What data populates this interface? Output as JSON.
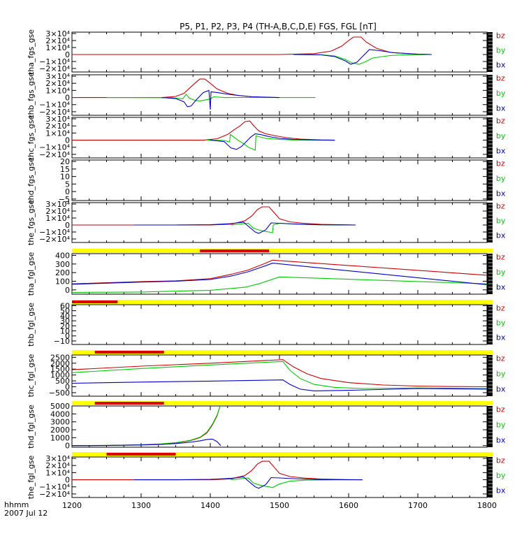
{
  "title": "P5, P1, P2, P3, P4 (TH-A,B,C,D,E) FGS, FGL [nT]",
  "colors": {
    "bz": "#cc0000",
    "by": "#00cc00",
    "bx": "#0000cc",
    "bar_bg": "#ffff00",
    "bar_fill": "#dd0000"
  },
  "time_axis": {
    "label_line1": "hhmm",
    "label_line2": "2007 Jul 12",
    "xlim": [
      1200,
      1800
    ],
    "ticks": [
      "1200",
      "1300",
      "1400",
      "1500",
      "1600",
      "1700",
      "1800"
    ]
  },
  "chart_data": [
    {
      "id": "tha_fgs_gse",
      "type": "line",
      "ylabel": "tha_fgs_gse",
      "ylim": [
        -25000,
        32000
      ],
      "yticks": [
        {
          "v": 30000,
          "t": "3×10⁴"
        },
        {
          "v": 20000,
          "t": "2×10⁴"
        },
        {
          "v": 10000,
          "t": "1×10⁴"
        },
        {
          "v": 0,
          "t": "0"
        },
        {
          "v": -10000,
          "t": "−1×10⁴"
        },
        {
          "v": -20000,
          "t": "−2×10⁴"
        }
      ],
      "series": [
        {
          "name": "bz",
          "x": [
            1200,
            1500,
            1550,
            1575,
            1590,
            1600,
            1607,
            1618,
            1625,
            1640,
            1660,
            1700,
            1720
          ],
          "y": [
            0,
            0,
            1200,
            5000,
            12000,
            20000,
            25000,
            25000,
            18000,
            9000,
            3000,
            400,
            0
          ]
        },
        {
          "name": "by",
          "x": [
            1520,
            1560,
            1580,
            1595,
            1605,
            1615,
            1625,
            1635,
            1645,
            1660,
            1680,
            1720
          ],
          "y": [
            0,
            -300,
            -2000,
            -7000,
            -12000,
            -14000,
            -10000,
            -5000,
            -3500,
            -1500,
            -400,
            0
          ]
        },
        {
          "name": "bx",
          "x": [
            1520,
            1560,
            1580,
            1595,
            1603,
            1612,
            1620,
            1630,
            1645,
            1665,
            1700,
            1720
          ],
          "y": [
            0,
            -500,
            -3000,
            -9000,
            -14000,
            -11000,
            -3000,
            7000,
            5500,
            2500,
            500,
            0
          ]
        }
      ]
    },
    {
      "id": "thb_fgs_gse",
      "type": "line",
      "ylabel": "thb_fgs_gse",
      "ylim": [
        -25000,
        32000
      ],
      "yticks": [
        {
          "v": 30000,
          "t": "3×10⁴"
        },
        {
          "v": 20000,
          "t": "2×10⁴"
        },
        {
          "v": 10000,
          "t": "1×10⁴"
        },
        {
          "v": 0,
          "t": "0"
        },
        {
          "v": -10000,
          "t": "−1×10⁴"
        },
        {
          "v": -20000,
          "t": "−2×10⁴"
        }
      ],
      "series": [
        {
          "name": "bz",
          "x": [
            1200,
            1330,
            1350,
            1362,
            1372,
            1380,
            1385,
            1392,
            1400,
            1410,
            1425,
            1440,
            1460,
            1480,
            1500
          ],
          "y": [
            0,
            0,
            1500,
            6000,
            15000,
            22000,
            26000,
            26000,
            20000,
            12000,
            6000,
            3000,
            1000,
            300,
            0
          ]
        },
        {
          "name": "by",
          "x": [
            1250,
            1345,
            1360,
            1365,
            1370,
            1378,
            1385,
            1395,
            1400,
            1405,
            1420,
            1450,
            1552
          ],
          "y": [
            0,
            -200,
            -2000,
            4500,
            -1000,
            -4000,
            -5000,
            -3000,
            -2000,
            1000,
            0,
            100,
            0
          ]
        },
        {
          "name": "bx",
          "x": [
            1330,
            1350,
            1362,
            1367,
            1372,
            1380,
            1390,
            1398,
            1400,
            1401,
            1410,
            1430,
            1460,
            1500
          ],
          "y": [
            0,
            -1500,
            -6000,
            -13000,
            -12000,
            -3000,
            7000,
            10000,
            -17000,
            8000,
            7000,
            4000,
            1000,
            0
          ]
        }
      ]
    },
    {
      "id": "thc_fgs_gse",
      "type": "line",
      "ylabel": "thc_fgs_gse",
      "ylim": [
        -25000,
        32000
      ],
      "yticks": [
        {
          "v": 30000,
          "t": "3×10⁴"
        },
        {
          "v": 20000,
          "t": "2×10⁴"
        },
        {
          "v": 10000,
          "t": "1×10⁴"
        },
        {
          "v": 0,
          "t": "0"
        },
        {
          "v": -10000,
          "t": "−1×10⁴"
        },
        {
          "v": -20000,
          "t": "−2×10⁴"
        }
      ],
      "series": [
        {
          "name": "bz",
          "x": [
            1200,
            1390,
            1410,
            1425,
            1435,
            1443,
            1450,
            1457,
            1463,
            1470,
            1480,
            1495,
            1510,
            1530,
            1560,
            1580
          ],
          "y": [
            0,
            0,
            2000,
            8000,
            15000,
            20000,
            26000,
            27000,
            20000,
            13000,
            9000,
            6000,
            3500,
            1500,
            300,
            0
          ]
        },
        {
          "name": "by",
          "x": [
            1395,
            1420,
            1428,
            1429,
            1440,
            1450,
            1455,
            1460,
            1465,
            1466,
            1470,
            1480,
            1500,
            1520,
            1560,
            1580
          ],
          "y": [
            0,
            -500,
            -2500,
            8000,
            0,
            -6000,
            -10000,
            -12000,
            -14000,
            6000,
            5000,
            2500,
            1000,
            300,
            0,
            0
          ]
        },
        {
          "name": "bx",
          "x": [
            1400,
            1420,
            1430,
            1438,
            1445,
            1452,
            1458,
            1465,
            1472,
            1485,
            1500,
            1520,
            1560,
            1580
          ],
          "y": [
            0,
            -2000,
            -11000,
            -13000,
            -9000,
            -2000,
            4000,
            9000,
            8000,
            5000,
            2500,
            1000,
            200,
            0
          ]
        }
      ]
    },
    {
      "id": "thd_fgs_gse",
      "type": "line",
      "ylabel": "thd_fgs_gse",
      "ylim": [
        -6,
        21
      ],
      "yticks": [
        {
          "v": 20,
          "t": "20"
        },
        {
          "v": 15,
          "t": "15"
        },
        {
          "v": 10,
          "t": "10"
        },
        {
          "v": 5,
          "t": "5"
        },
        {
          "v": 0,
          "t": "0"
        },
        {
          "v": -5,
          "t": "−5"
        }
      ],
      "series": []
    },
    {
      "id": "the_fgs_gse",
      "type": "line",
      "ylabel": "the_fgs_gse",
      "ylim": [
        -25000,
        32000
      ],
      "yticks": [
        {
          "v": 30000,
          "t": "3×10⁴"
        },
        {
          "v": 20000,
          "t": "2×10⁴"
        },
        {
          "v": 10000,
          "t": "1×10⁴"
        },
        {
          "v": 0,
          "t": "0"
        },
        {
          "v": -10000,
          "t": "−1×10⁴"
        },
        {
          "v": -20000,
          "t": "−2×10⁴"
        }
      ],
      "series": [
        {
          "name": "bz",
          "x": [
            1200,
            1400,
            1430,
            1450,
            1460,
            1468,
            1475,
            1485,
            1492,
            1500,
            1515,
            1535,
            1560,
            1600,
            1610
          ],
          "y": [
            0,
            0,
            1200,
            6000,
            13000,
            22000,
            26000,
            26000,
            18000,
            9000,
            4500,
            2500,
            1000,
            200,
            0
          ]
        },
        {
          "name": "by",
          "x": [
            1430,
            1455,
            1462,
            1470,
            1478,
            1485,
            1490,
            1491,
            1500,
            1515,
            1540,
            1580,
            1610
          ],
          "y": [
            0,
            2500,
            -4500,
            -7000,
            -9000,
            -10000,
            -11000,
            0,
            2500,
            1500,
            500,
            100,
            0
          ]
        },
        {
          "name": "bx",
          "x": [
            1290,
            1350,
            1400,
            1430,
            1448,
            1460,
            1465,
            1470,
            1480,
            1488,
            1500,
            1520,
            1560,
            1610
          ],
          "y": [
            0,
            0,
            500,
            2000,
            4000,
            -6000,
            -10000,
            -12000,
            -7000,
            3000,
            2500,
            1500,
            300,
            0
          ]
        }
      ]
    },
    {
      "id": "tha_fgl_gse",
      "type": "line",
      "ylabel": "tha_fgl_gse",
      "ylim": [
        -50,
        420
      ],
      "yticks": [
        {
          "v": 400,
          "t": "400"
        },
        {
          "v": 300,
          "t": "300"
        },
        {
          "v": 200,
          "t": "200"
        },
        {
          "v": 100,
          "t": "100"
        },
        {
          "v": 0,
          "t": "0"
        }
      ],
      "series": [
        {
          "name": "bz",
          "x": [
            1200,
            1300,
            1350,
            1400,
            1430,
            1455,
            1480,
            1490,
            1800
          ],
          "y": [
            70,
            95,
            105,
            130,
            180,
            230,
            310,
            345,
            170
          ]
        },
        {
          "name": "by",
          "x": [
            1200,
            1300,
            1400,
            1450,
            1470,
            1485,
            1500,
            1800
          ],
          "y": [
            -30,
            -25,
            -5,
            30,
            70,
            110,
            150,
            70
          ]
        },
        {
          "name": "bx",
          "x": [
            1200,
            1300,
            1350,
            1400,
            1430,
            1455,
            1480,
            1490,
            1800
          ],
          "y": [
            65,
            90,
            100,
            120,
            160,
            210,
            280,
            310,
            60
          ]
        }
      ],
      "bar": {
        "xmin": 1385,
        "xmax": 1485
      }
    },
    {
      "id": "thb_fgl_gse",
      "type": "line",
      "ylabel": "thb_fgl_gse",
      "ylim": [
        -17,
        62
      ],
      "yticks": [
        {
          "v": 60,
          "t": "60"
        },
        {
          "v": 50,
          "t": "50"
        },
        {
          "v": 40,
          "t": "40"
        },
        {
          "v": 30,
          "t": "30"
        },
        {
          "v": 20,
          "t": "20"
        },
        {
          "v": 10,
          "t": "10"
        },
        {
          "v": 0,
          "t": "0"
        },
        {
          "v": -10,
          "t": "−10"
        }
      ],
      "series": [],
      "bar": {
        "xmin": 1200,
        "xmax": 1266
      }
    },
    {
      "id": "thc_fgl_gse",
      "type": "line",
      "ylabel": "thc_fgl_gse",
      "ylim": [
        -800,
        2700
      ],
      "yticks": [
        {
          "v": 2500,
          "t": "2500"
        },
        {
          "v": 2000,
          "t": "2000"
        },
        {
          "v": 1500,
          "t": "1500"
        },
        {
          "v": 1000,
          "t": "1000"
        },
        {
          "v": 500,
          "t": "500"
        },
        {
          "v": 0,
          "t": "0"
        },
        {
          "v": -500,
          "t": "−500"
        }
      ],
      "series": [
        {
          "name": "bz",
          "x": [
            1200,
            1300,
            1400,
            1505,
            1520,
            1540,
            1560,
            1600,
            1650,
            1700,
            1750,
            1800
          ],
          "y": [
            1450,
            1750,
            2000,
            2300,
            1700,
            1100,
            700,
            350,
            150,
            60,
            20,
            0
          ]
        },
        {
          "name": "by",
          "x": [
            1200,
            1300,
            1400,
            1505,
            1515,
            1530,
            1550,
            1580,
            1620,
            1700,
            1800
          ],
          "y": [
            1200,
            1550,
            1850,
            2150,
            1400,
            700,
            200,
            -50,
            -150,
            -100,
            -150
          ]
        },
        {
          "name": "bx",
          "x": [
            1200,
            1300,
            1400,
            1505,
            1515,
            1530,
            1550,
            1600,
            1700,
            1800
          ],
          "y": [
            300,
            400,
            480,
            580,
            200,
            -200,
            -350,
            -300,
            -150,
            -200
          ]
        }
      ],
      "bar": {
        "xmin": 1233,
        "xmax": 1333
      }
    },
    {
      "id": "thd_fgl_gse",
      "type": "line",
      "ylabel": "thd_fgl_gse",
      "ylim": [
        -200,
        5000
      ],
      "yticks": [
        {
          "v": 5000,
          "t": "5000"
        },
        {
          "v": 4000,
          "t": "4000"
        },
        {
          "v": 3000,
          "t": "3000"
        },
        {
          "v": 2000,
          "t": "2000"
        },
        {
          "v": 1000,
          "t": "1000"
        },
        {
          "v": 0,
          "t": "0"
        }
      ],
      "series": [
        {
          "name": "bz",
          "x": [
            1200,
            1250,
            1300,
            1330,
            1350,
            1370,
            1385,
            1395,
            1403,
            1410,
            1414
          ],
          "y": [
            0,
            30,
            100,
            200,
            350,
            600,
            1000,
            1600,
            2600,
            3800,
            5000
          ]
        },
        {
          "name": "by",
          "x": [
            1200,
            1250,
            1300,
            1330,
            1350,
            1370,
            1385,
            1395,
            1403,
            1410,
            1414
          ],
          "y": [
            0,
            30,
            110,
            220,
            380,
            650,
            1050,
            1700,
            2700,
            3900,
            5000
          ]
        },
        {
          "name": "bx",
          "x": [
            1200,
            1250,
            1300,
            1330,
            1350,
            1370,
            1385,
            1395,
            1403,
            1410,
            1415
          ],
          "y": [
            0,
            15,
            80,
            160,
            260,
            420,
            600,
            780,
            820,
            500,
            0
          ]
        }
      ],
      "bar": {
        "xmin": 1233,
        "xmax": 1333
      }
    },
    {
      "id": "the_fgl_gse",
      "type": "line",
      "ylabel": "the_fgl_gse",
      "ylim": [
        -25000,
        32000
      ],
      "yticks": [
        {
          "v": 30000,
          "t": "3×10⁴"
        },
        {
          "v": 20000,
          "t": "2×10⁴"
        },
        {
          "v": 10000,
          "t": "1×10⁴"
        },
        {
          "v": 0,
          "t": "0"
        },
        {
          "v": -10000,
          "t": "−1×10⁴"
        },
        {
          "v": -20000,
          "t": "−2×10⁴"
        }
      ],
      "series": [
        {
          "name": "bz",
          "x": [
            1200,
            1400,
            1430,
            1450,
            1460,
            1468,
            1475,
            1485,
            1492,
            1500,
            1515,
            1535,
            1560,
            1600,
            1620
          ],
          "y": [
            0,
            0,
            1200,
            6000,
            13000,
            22000,
            26000,
            26000,
            18000,
            9000,
            4500,
            2500,
            1000,
            200,
            0
          ]
        },
        {
          "name": "by",
          "x": [
            1430,
            1455,
            1462,
            1470,
            1478,
            1485,
            1490,
            1500,
            1515,
            1540,
            1580,
            1620
          ],
          "y": [
            0,
            2500,
            -4500,
            -7000,
            -9000,
            -10000,
            -11000,
            -6000,
            -2000,
            -500,
            -100,
            0
          ]
        },
        {
          "name": "bx",
          "x": [
            1290,
            1350,
            1400,
            1430,
            1448,
            1460,
            1465,
            1470,
            1480,
            1488,
            1500,
            1520,
            1560,
            1620
          ],
          "y": [
            0,
            0,
            500,
            2000,
            4000,
            -6000,
            -10000,
            -12000,
            -7000,
            3000,
            2500,
            1500,
            300,
            0
          ]
        }
      ],
      "bar": {
        "xmin": 1250,
        "xmax": 1350
      }
    }
  ]
}
